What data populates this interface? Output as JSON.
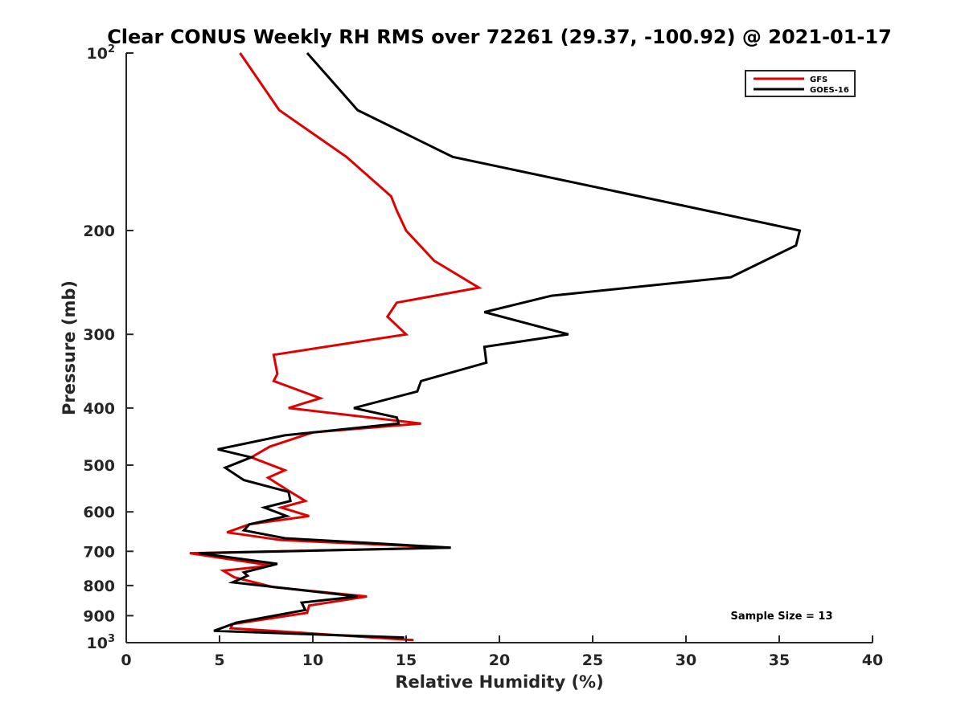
{
  "chart_data": {
    "type": "line",
    "title": "Clear CONUS Weekly RH RMS over 72261 (29.37, -100.92) @ 2021-01-17",
    "xlabel": "Relative Humidity (%)",
    "ylabel": "Pressure (mb)",
    "xlim": [
      0,
      40
    ],
    "ylim": [
      100,
      1000
    ],
    "y_scale": "log",
    "y_reversed": true,
    "grid": false,
    "legend_position": "top-right",
    "x_ticks": [
      "0",
      "5",
      "10",
      "15",
      "20",
      "25",
      "30",
      "35",
      "40"
    ],
    "y_ticks": [
      {
        "value": 100,
        "label": "10",
        "sup": "2"
      },
      {
        "value": 200,
        "label": "200"
      },
      {
        "value": 300,
        "label": "300"
      },
      {
        "value": 400,
        "label": "400"
      },
      {
        "value": 500,
        "label": "500"
      },
      {
        "value": 600,
        "label": "600"
      },
      {
        "value": 700,
        "label": "700"
      },
      {
        "value": 800,
        "label": "800"
      },
      {
        "value": 900,
        "label": "900"
      },
      {
        "value": 1000,
        "label": "10",
        "sup": "3"
      }
    ],
    "annotation": "Sample Size = 13",
    "series": [
      {
        "name": "GFS",
        "color": "#e00000",
        "points": [
          [
            6.1,
            100
          ],
          [
            8.2,
            125
          ],
          [
            11.8,
            150
          ],
          [
            14.2,
            175
          ],
          [
            14.5,
            185
          ],
          [
            15.0,
            200
          ],
          [
            16.5,
            225
          ],
          [
            18.9,
            250
          ],
          [
            14.5,
            265
          ],
          [
            14.0,
            280
          ],
          [
            15.0,
            300
          ],
          [
            7.9,
            325
          ],
          [
            8.1,
            350
          ],
          [
            7.9,
            360
          ],
          [
            10.4,
            385
          ],
          [
            8.7,
            400
          ],
          [
            15.8,
            425
          ],
          [
            10.0,
            440
          ],
          [
            7.7,
            465
          ],
          [
            6.7,
            485
          ],
          [
            8.5,
            510
          ],
          [
            7.6,
            525
          ],
          [
            8.6,
            550
          ],
          [
            9.6,
            575
          ],
          [
            8.3,
            590
          ],
          [
            9.8,
            610
          ],
          [
            6.6,
            630
          ],
          [
            5.4,
            650
          ],
          [
            8.3,
            670
          ],
          [
            17.3,
            690
          ],
          [
            3.4,
            705
          ],
          [
            7.8,
            740
          ],
          [
            5.2,
            755
          ],
          [
            5.8,
            775
          ],
          [
            7.9,
            805
          ],
          [
            12.9,
            835
          ],
          [
            9.8,
            865
          ],
          [
            9.7,
            890
          ],
          [
            5.7,
            930
          ],
          [
            5.6,
            945
          ],
          [
            15.4,
            990
          ]
        ]
      },
      {
        "name": "GOES-16",
        "color": "#000000",
        "points": [
          [
            9.7,
            100
          ],
          [
            12.4,
            125
          ],
          [
            17.5,
            150
          ],
          [
            31.1,
            185
          ],
          [
            36.1,
            200
          ],
          [
            35.9,
            212
          ],
          [
            32.4,
            240
          ],
          [
            22.8,
            258
          ],
          [
            19.2,
            275
          ],
          [
            23.7,
            300
          ],
          [
            19.2,
            315
          ],
          [
            19.3,
            335
          ],
          [
            15.8,
            360
          ],
          [
            15.6,
            375
          ],
          [
            12.2,
            400
          ],
          [
            14.5,
            415
          ],
          [
            14.6,
            425
          ],
          [
            8.5,
            445
          ],
          [
            4.9,
            470
          ],
          [
            6.7,
            485
          ],
          [
            5.3,
            505
          ],
          [
            6.3,
            530
          ],
          [
            8.7,
            555
          ],
          [
            8.8,
            575
          ],
          [
            7.4,
            590
          ],
          [
            8.6,
            610
          ],
          [
            6.6,
            630
          ],
          [
            6.3,
            645
          ],
          [
            8.5,
            665
          ],
          [
            17.4,
            690
          ],
          [
            3.9,
            705
          ],
          [
            8.1,
            735
          ],
          [
            6.3,
            760
          ],
          [
            6.5,
            770
          ],
          [
            5.7,
            790
          ],
          [
            12.4,
            835
          ],
          [
            9.4,
            855
          ],
          [
            9.6,
            880
          ],
          [
            5.9,
            925
          ],
          [
            4.7,
            955
          ],
          [
            14.9,
            980
          ]
        ]
      }
    ]
  }
}
